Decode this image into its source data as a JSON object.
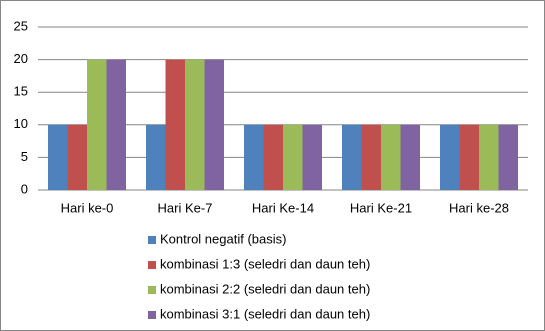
{
  "chart_data": {
    "type": "bar",
    "categories": [
      "Hari ke-0",
      "Hari Ke-7",
      "Hari Ke-14",
      "Hari Ke-21",
      "Hari ke-28"
    ],
    "series": [
      {
        "name": "Kontrol negatif (basis)",
        "color": "#4f81bd",
        "values": [
          10,
          10,
          10,
          10,
          10
        ]
      },
      {
        "name": "kombinasi 1:3 (seledri dan daun teh)",
        "color": "#c0504d",
        "values": [
          10,
          20,
          10,
          10,
          10
        ]
      },
      {
        "name": "kombinasi 2:2 (seledri dan daun teh)",
        "color": "#9bbb59",
        "values": [
          20,
          20,
          10,
          10,
          10
        ]
      },
      {
        "name": "kombinasi 3:1 (seledri dan daun teh)",
        "color": "#8064a2",
        "values": [
          20,
          20,
          10,
          10,
          10
        ]
      }
    ],
    "ylim": [
      0,
      25
    ],
    "yticks": [
      0,
      5,
      10,
      15,
      20,
      25
    ],
    "grid": true,
    "legend": "bottom"
  }
}
